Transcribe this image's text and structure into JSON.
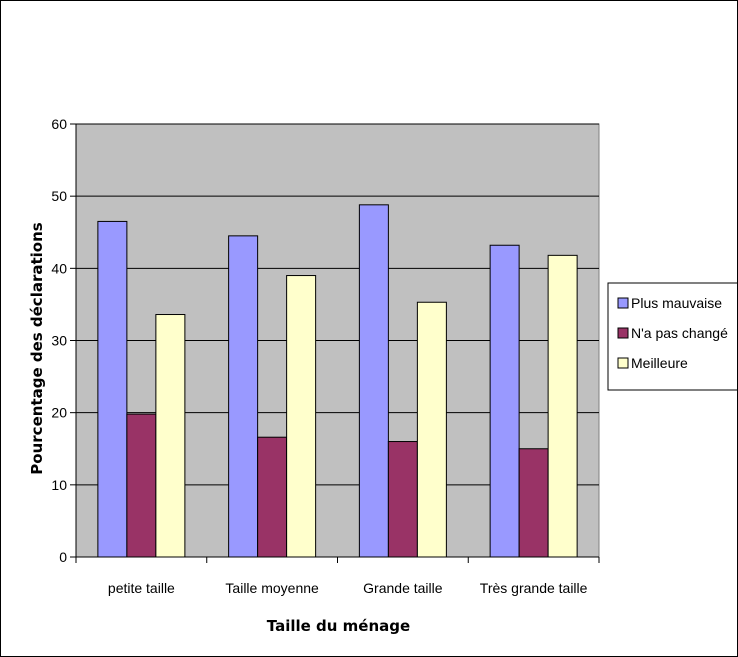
{
  "chart_data": {
    "type": "bar",
    "xlabel": "Taille du ménage",
    "ylabel": "Pourcentage des déclarations",
    "ylim": [
      0,
      60
    ],
    "yticks": [
      0,
      10,
      20,
      30,
      40,
      50,
      60
    ],
    "grid": true,
    "legend_position": "right",
    "categories": [
      "petite taille",
      "Taille moyenne",
      "Grande taille",
      "Très grande taille"
    ],
    "series": [
      {
        "name": "Plus mauvaise",
        "color": "#9999ff",
        "values": [
          46.5,
          44.5,
          48.8,
          43.2
        ]
      },
      {
        "name": "N'a pas changé",
        "color": "#993366",
        "values": [
          19.8,
          16.6,
          16.0,
          15.0
        ]
      },
      {
        "name": "Meilleure",
        "color": "#ffffcc",
        "values": [
          33.6,
          39.0,
          35.3,
          41.8
        ]
      }
    ],
    "plot_area_color": "#c0c0c0"
  }
}
